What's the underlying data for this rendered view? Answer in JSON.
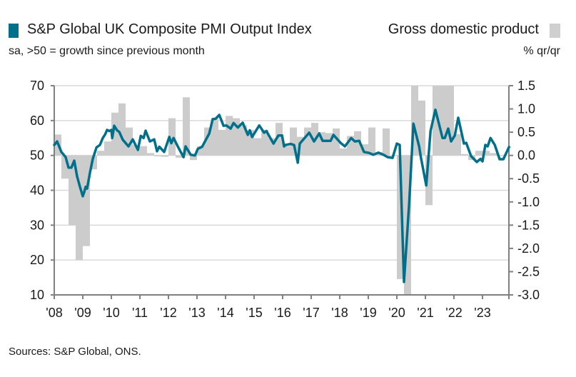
{
  "legend": {
    "pmi_label": "S&P Global UK Composite PMI Output Index",
    "pmi_subtitle": "sa, >50 = growth since previous month",
    "gdp_label": "Gross domestic product",
    "gdp_unit": "% qr/qr"
  },
  "source": "Sources: S&P Global, ONS.",
  "colors": {
    "pmi": "#00708a",
    "gdp": "#cccccc",
    "grid": "#d9d9d9",
    "axis": "#808080"
  },
  "chart_data": {
    "type": "bar+line",
    "x_tick_labels": [
      "'08",
      "'09",
      "'10",
      "'11",
      "'12",
      "'13",
      "'14",
      "'15",
      "'16",
      "'17",
      "'18",
      "'19",
      "'20",
      "'21",
      "'22",
      "'23"
    ],
    "x_range": [
      2008,
      2023.95
    ],
    "left_axis": {
      "ylim": [
        10,
        70
      ],
      "ticks": [
        "10",
        "20",
        "30",
        "40",
        "50",
        "60",
        "70"
      ],
      "grid": true
    },
    "right_axis": {
      "ylim": [
        -3.0,
        1.5
      ],
      "ticks": [
        "-3.0",
        "-2.5",
        "-2.0",
        "-1.5",
        "-1.0",
        "-0.5",
        "0.0",
        "0.5",
        "1.0",
        "1.5"
      ]
    },
    "gdp": {
      "name": "Gross domestic product",
      "start": 2008,
      "frequency": "quarterly",
      "values": [
        0.45,
        -0.5,
        -1.5,
        -2.25,
        -1.95,
        -0.3,
        0.1,
        0.3,
        0.92,
        1.12,
        0.6,
        0.23,
        0.2,
        0.05,
        -0.02,
        -0.03,
        0.8,
        -0.05,
        1.25,
        -0.1,
        0.2,
        0.6,
        0.8,
        0.55,
        0.85,
        0.8,
        0.65,
        0.55,
        0.37,
        0.55,
        0.37,
        0.7,
        0.2,
        0.6,
        0.4,
        0.6,
        0.7,
        0.5,
        0.48,
        0.58,
        0.15,
        0.42,
        0.52,
        0.24,
        0.6,
        0.07,
        0.58,
        0.0,
        -2.66,
        -3.0,
        1.5,
        1.18,
        -1.07,
        1.5,
        1.5,
        1.5,
        0.46,
        0.03,
        -0.1,
        0.1,
        0.1,
        0.05,
        0.0
      ]
    },
    "pmi": {
      "name": "S&P Global UK Composite PMI Output Index",
      "points": [
        [
          2008.0,
          53
        ],
        [
          2008.1,
          54
        ],
        [
          2008.25,
          51
        ],
        [
          2008.4,
          49.5
        ],
        [
          2008.5,
          46.5
        ],
        [
          2008.6,
          46.5
        ],
        [
          2008.7,
          48.5
        ],
        [
          2008.8,
          44
        ],
        [
          2008.9,
          41
        ],
        [
          2009.0,
          38.3
        ],
        [
          2009.05,
          39.5
        ],
        [
          2009.1,
          41
        ],
        [
          2009.15,
          40.5
        ],
        [
          2009.25,
          45
        ],
        [
          2009.35,
          49
        ],
        [
          2009.48,
          52.3
        ],
        [
          2009.6,
          53
        ],
        [
          2009.7,
          55
        ],
        [
          2009.78,
          56
        ],
        [
          2009.85,
          57.3
        ],
        [
          2009.93,
          57
        ],
        [
          2010.0,
          57.3
        ],
        [
          2010.03,
          55
        ],
        [
          2010.1,
          58.5
        ],
        [
          2010.2,
          57.2
        ],
        [
          2010.28,
          56.7
        ],
        [
          2010.4,
          54.5
        ],
        [
          2010.6,
          52.6
        ],
        [
          2010.75,
          54.6
        ],
        [
          2010.93,
          51.6
        ],
        [
          2011.03,
          55.6
        ],
        [
          2011.13,
          55
        ],
        [
          2011.2,
          57.1
        ],
        [
          2011.35,
          54
        ],
        [
          2011.5,
          54.6
        ],
        [
          2011.6,
          51.2
        ],
        [
          2011.68,
          52.5
        ],
        [
          2011.85,
          51
        ],
        [
          2012.03,
          55.3
        ],
        [
          2012.1,
          53.5
        ],
        [
          2012.18,
          55
        ],
        [
          2012.35,
          52.2
        ],
        [
          2012.53,
          49.5
        ],
        [
          2012.6,
          52.6
        ],
        [
          2012.78,
          50.2
        ],
        [
          2012.93,
          50
        ],
        [
          2013.03,
          51.9
        ],
        [
          2013.18,
          52.5
        ],
        [
          2013.43,
          56.3
        ],
        [
          2013.55,
          60.4
        ],
        [
          2013.65,
          60.5
        ],
        [
          2013.78,
          61.6
        ],
        [
          2013.93,
          58.5
        ],
        [
          2014.03,
          58.6
        ],
        [
          2014.18,
          57.7
        ],
        [
          2014.28,
          59.3
        ],
        [
          2014.43,
          58
        ],
        [
          2014.6,
          59.4
        ],
        [
          2014.78,
          55.9
        ],
        [
          2014.85,
          57.2
        ],
        [
          2014.93,
          55.3
        ],
        [
          2015.18,
          58.6
        ],
        [
          2015.35,
          56.5
        ],
        [
          2015.43,
          57
        ],
        [
          2015.68,
          53.4
        ],
        [
          2015.85,
          55.7
        ],
        [
          2015.98,
          55.7
        ],
        [
          2016.05,
          52.6
        ],
        [
          2016.1,
          53
        ],
        [
          2016.28,
          53.3
        ],
        [
          2016.4,
          53
        ],
        [
          2016.53,
          47.9
        ],
        [
          2016.6,
          53.4
        ],
        [
          2016.93,
          56.5
        ],
        [
          2017.1,
          54
        ],
        [
          2017.28,
          56.3
        ],
        [
          2017.4,
          54.2
        ],
        [
          2017.68,
          54.2
        ],
        [
          2017.78,
          55.9
        ],
        [
          2018.03,
          53.6
        ],
        [
          2018.18,
          52.6
        ],
        [
          2018.4,
          55
        ],
        [
          2018.53,
          54
        ],
        [
          2018.68,
          54.2
        ],
        [
          2018.85,
          51
        ],
        [
          2019.03,
          50.7
        ],
        [
          2019.18,
          50.2
        ],
        [
          2019.35,
          50.8
        ],
        [
          2019.53,
          50.2
        ],
        [
          2019.68,
          49.5
        ],
        [
          2019.85,
          49.3
        ],
        [
          2020.0,
          53.4
        ],
        [
          2020.1,
          53
        ],
        [
          2020.25,
          13.7
        ],
        [
          2020.43,
          36
        ],
        [
          2020.58,
          59.1
        ],
        [
          2020.78,
          52.6
        ],
        [
          2020.85,
          49.1
        ],
        [
          2021.03,
          41.4
        ],
        [
          2021.18,
          57
        ],
        [
          2021.35,
          63.1
        ],
        [
          2021.6,
          55
        ],
        [
          2021.68,
          55
        ],
        [
          2021.8,
          57.7
        ],
        [
          2021.9,
          54
        ],
        [
          2022.03,
          55.7
        ],
        [
          2022.15,
          60.8
        ],
        [
          2022.35,
          53.4
        ],
        [
          2022.43,
          53.6
        ],
        [
          2022.6,
          49.8
        ],
        [
          2022.8,
          48.1
        ],
        [
          2022.93,
          49
        ],
        [
          2023.0,
          48.3
        ],
        [
          2023.1,
          53
        ],
        [
          2023.18,
          52.6
        ],
        [
          2023.28,
          55
        ],
        [
          2023.43,
          53
        ],
        [
          2023.6,
          48.9
        ],
        [
          2023.73,
          48.9
        ],
        [
          2023.93,
          52.4
        ]
      ]
    }
  }
}
